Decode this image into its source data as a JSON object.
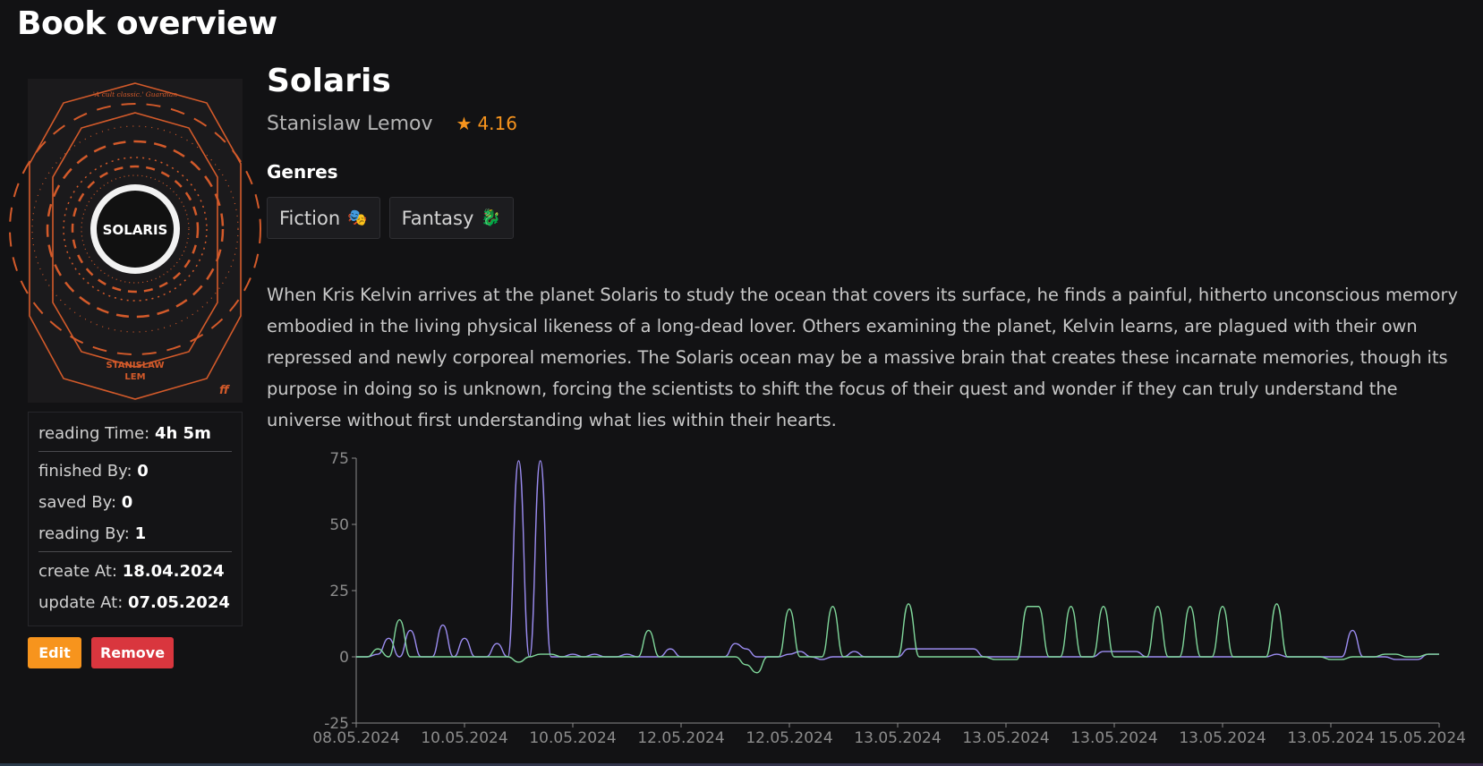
{
  "page": {
    "title": "Book overview"
  },
  "book": {
    "title": "Solaris",
    "author": "Stanislaw Lemov",
    "rating": "4.16",
    "rating_icon": "star-icon",
    "cover": {
      "quote": "'A cult classic.' Guardian",
      "title": "SOLARIS",
      "author_line1": "STANISLAW",
      "author_line2": "LEM",
      "publisher_mark": "ff"
    },
    "genres_label": "Genres",
    "genres": [
      {
        "label": "Fiction",
        "icon": "🎭"
      },
      {
        "label": "Fantasy",
        "icon": "🐉"
      }
    ],
    "description": "When Kris Kelvin arrives at the planet Solaris to study the ocean that covers its surface, he finds a painful, hitherto unconscious memory embodied in the living physical likeness of a long-dead lover. Others examining the planet, Kelvin learns, are plagued with their own repressed and newly corporeal memories. The Solaris ocean may be a massive brain that creates these incarnate memories, though its purpose in doing so is unknown, forcing the scientists to shift the focus of their quest and wonder if they can truly understand the universe without first understanding what lies within their hearts."
  },
  "stats": {
    "reading_time_label": "reading Time:",
    "reading_time": "4h 5m",
    "finished_by_label": "finished By:",
    "finished_by": "0",
    "saved_by_label": "saved By:",
    "saved_by": "0",
    "reading_by_label": "reading By:",
    "reading_by": "1",
    "create_at_label": "create At:",
    "create_at": "18.04.2024",
    "update_at_label": "update At:",
    "update_at": "07.05.2024"
  },
  "actions": {
    "edit": "Edit",
    "remove": "Remove"
  },
  "colors": {
    "accent": "#f7941d",
    "danger": "#d9363e",
    "series_purple": "#9b8cf0",
    "series_green": "#7fd69a"
  },
  "chart_data": {
    "type": "line",
    "title": "",
    "xlabel": "",
    "ylabel": "",
    "ylim": [
      -25,
      75
    ],
    "yticks": [
      -25,
      0,
      25,
      50,
      75
    ],
    "xtick_labels": [
      "08.05.2024",
      "10.05.2024",
      "10.05.2024",
      "12.05.2024",
      "12.05.2024",
      "13.05.2024",
      "13.05.2024",
      "13.05.2024",
      "13.05.2024",
      "13.05.2024",
      "15.05.2024"
    ],
    "x": [
      0,
      1,
      2,
      3,
      4,
      5,
      6,
      7,
      8,
      9,
      10,
      11,
      12,
      13,
      14,
      15,
      16,
      17,
      18,
      19,
      20,
      21,
      22,
      23,
      24,
      25,
      26,
      27,
      28,
      29,
      30,
      31,
      32,
      33,
      34,
      35,
      36,
      37,
      38,
      39,
      40,
      41,
      42,
      43,
      44,
      45,
      46,
      47,
      48,
      49,
      50,
      51,
      52,
      53,
      54,
      55,
      56,
      57,
      58,
      59,
      60,
      61,
      62,
      63,
      64,
      65,
      66,
      67,
      68,
      69,
      70,
      71,
      72,
      73,
      74,
      75,
      76,
      77,
      78,
      79,
      80,
      81,
      82,
      83,
      84,
      85,
      86,
      87,
      88,
      89,
      90,
      91,
      92,
      93,
      94,
      95,
      96,
      97,
      98,
      99,
      100
    ],
    "series": [
      {
        "color": "#9b8cf0",
        "values": [
          0,
          0,
          1,
          7,
          0,
          10,
          0,
          0,
          12,
          0,
          7,
          0,
          0,
          5,
          0,
          74,
          0,
          74,
          0,
          0,
          1,
          0,
          1,
          0,
          0,
          1,
          0,
          0,
          0,
          3,
          0,
          0,
          0,
          0,
          0,
          5,
          3,
          0,
          0,
          0,
          1,
          2,
          0,
          -1,
          0,
          0,
          2,
          0,
          0,
          0,
          0,
          3,
          3,
          3,
          3,
          3,
          3,
          3,
          0,
          0,
          0,
          0,
          0,
          0,
          0,
          0,
          0,
          0,
          0,
          2,
          2,
          2,
          2,
          0,
          0,
          0,
          0,
          0,
          0,
          0,
          0,
          0,
          0,
          0,
          0,
          1,
          0,
          0,
          0,
          0,
          0,
          0,
          10,
          0,
          0,
          0,
          -1,
          -1,
          -1,
          1,
          1
        ]
      },
      {
        "color": "#7fd69a",
        "values": [
          0,
          0,
          3,
          0,
          14,
          0,
          0,
          0,
          0,
          0,
          0,
          0,
          0,
          0,
          0,
          -2,
          0,
          1,
          1,
          0,
          0,
          0,
          0,
          0,
          0,
          0,
          0,
          10,
          0,
          0,
          0,
          0,
          0,
          0,
          0,
          0,
          -3,
          -6,
          0,
          0,
          18,
          0,
          0,
          0,
          19,
          0,
          0,
          0,
          0,
          0,
          0,
          20,
          0,
          0,
          0,
          0,
          0,
          0,
          0,
          -1,
          -1,
          -1,
          19,
          19,
          0,
          0,
          19,
          0,
          0,
          19,
          0,
          0,
          0,
          0,
          19,
          0,
          0,
          19,
          0,
          0,
          19,
          0,
          0,
          0,
          0,
          20,
          0,
          0,
          0,
          0,
          -1,
          -1,
          0,
          0,
          0,
          1,
          1,
          0,
          0,
          1,
          1
        ]
      }
    ]
  }
}
